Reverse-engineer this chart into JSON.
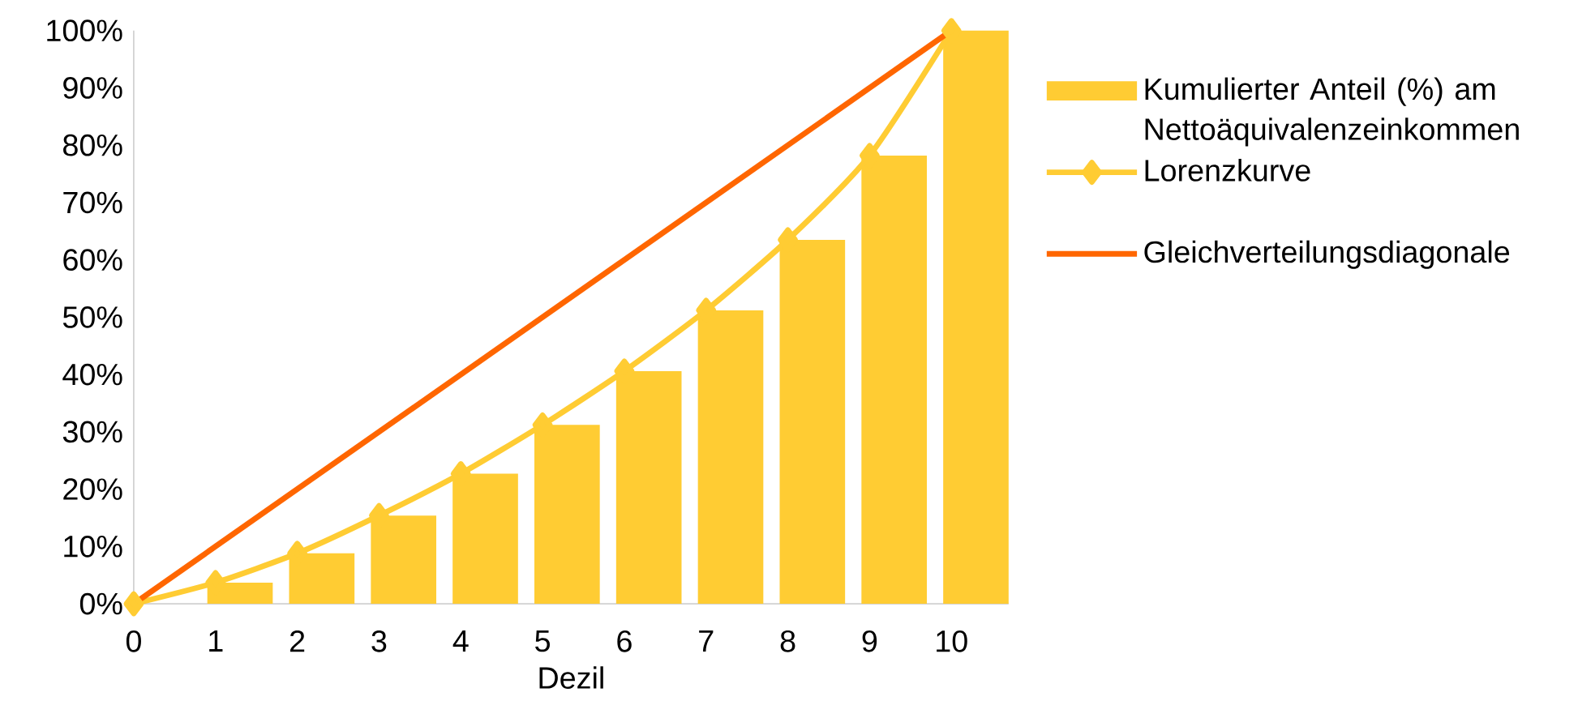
{
  "chart_data": {
    "type": "bar",
    "xlabel": "Dezil",
    "categories": [
      "0",
      "1",
      "2",
      "3",
      "4",
      "5",
      "6",
      "7",
      "8",
      "9",
      "10"
    ],
    "series": [
      {
        "name": "Kumulierter Anteil (%) am Nettoäquivalenzeinkommen",
        "color": "#ffcc33",
        "values": [
          0,
          3.7,
          8.8,
          15.4,
          22.7,
          31.2,
          40.6,
          51.2,
          63.5,
          78.2,
          100
        ]
      },
      {
        "name": "Lorenzkurve",
        "type": "line",
        "color": "#ffcc33",
        "marker": "diamond",
        "values": [
          0,
          3.7,
          8.8,
          15.4,
          22.7,
          31.2,
          40.6,
          51.2,
          63.5,
          78.2,
          100
        ]
      },
      {
        "name": "Gleichverteilungsdiagonale",
        "type": "line",
        "color": "#ff6600",
        "marker": "none",
        "x": [
          "0",
          "10"
        ],
        "values": [
          0,
          100
        ]
      }
    ],
    "ylim": [
      0,
      100
    ],
    "yticks": [
      {
        "value": 0,
        "label": "0%"
      },
      {
        "value": 10,
        "label": "10%"
      },
      {
        "value": 20,
        "label": "20%"
      },
      {
        "value": 30,
        "label": "30%"
      },
      {
        "value": 40,
        "label": "40%"
      },
      {
        "value": 50,
        "label": "50%"
      },
      {
        "value": 60,
        "label": "60%"
      },
      {
        "value": 70,
        "label": "70%"
      },
      {
        "value": 80,
        "label": "80%"
      },
      {
        "value": 90,
        "label": "90%"
      },
      {
        "value": 100,
        "label": "100%"
      }
    ],
    "grid": false,
    "legend": "right"
  }
}
